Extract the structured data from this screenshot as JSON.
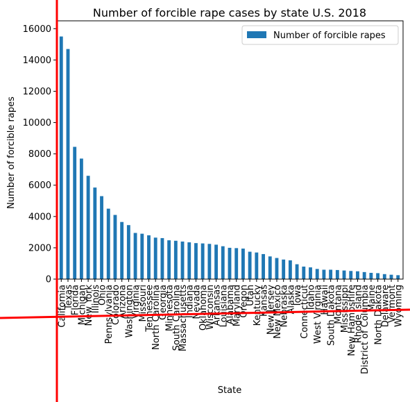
{
  "chart_data": {
    "type": "bar",
    "title": "Number of forcible rape cases by state U.S. 2018",
    "xlabel": "State",
    "ylabel": "Number of forcible rapes",
    "ylim": [
      0,
      16500
    ],
    "yticks": [
      0,
      2000,
      4000,
      6000,
      8000,
      10000,
      12000,
      14000,
      16000
    ],
    "ytick_labels": [
      "0",
      "2000",
      "4000",
      "6000",
      "8000",
      "10000",
      "12000",
      "14000",
      "16000"
    ],
    "grid": false,
    "legend_position": "top-right",
    "bar_color": "#1f77b4",
    "overlay_line_color": "#ff0000",
    "categories": [
      "California",
      "Texas",
      "Florida",
      "Michigan",
      "New York",
      "Illinois",
      "Ohio",
      "Pennsylvania",
      "Colorado",
      "Arizona",
      "Washington",
      "Virginia",
      "Missouri",
      "Tennessee",
      "North Carolina",
      "Georgia",
      "Minnesota",
      "South Carolina",
      "Massachusetts",
      "Indiana",
      "Nevada",
      "Oklahoma",
      "Wisconsin",
      "Arkansas",
      "Louisiana",
      "Alabama",
      "Maryland",
      "Oregon",
      "Utah",
      "Kentucky",
      "Kansas",
      "New Jersey",
      "New Mexico",
      "Nebraska",
      "Alaska",
      "Iowa",
      "Connecticut",
      "Idaho",
      "West Virginia",
      "Hawaii",
      "South Dakota",
      "Montana",
      "Mississippi",
      "New Hampshire",
      "Rhode Island",
      "District of Columbia",
      "Maine",
      "North Dakota",
      "Delaware",
      "Vermont",
      "Wyoming"
    ],
    "series": [
      {
        "name": "Number of forcible rapes",
        "values": [
          15500,
          14700,
          8450,
          7700,
          6600,
          5850,
          5300,
          4500,
          4100,
          3650,
          3450,
          2950,
          2900,
          2800,
          2650,
          2620,
          2480,
          2450,
          2400,
          2350,
          2300,
          2280,
          2250,
          2200,
          2100,
          2000,
          1980,
          1950,
          1750,
          1700,
          1600,
          1450,
          1350,
          1250,
          1200,
          950,
          800,
          750,
          650,
          600,
          600,
          580,
          550,
          520,
          500,
          450,
          400,
          380,
          320,
          280,
          250
        ]
      }
    ]
  }
}
